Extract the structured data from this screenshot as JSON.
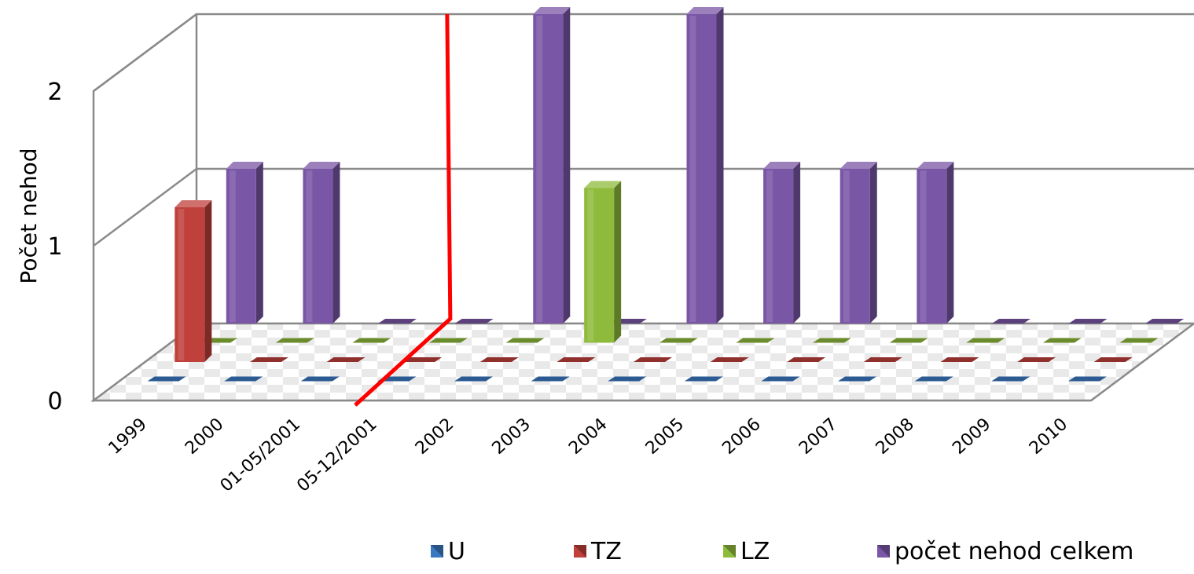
{
  "chart_data": {
    "type": "bar",
    "title": "",
    "xlabel": "",
    "ylabel": "Počet nehod",
    "ylim": [
      0,
      2
    ],
    "yticks": [
      "0",
      "1",
      "2"
    ],
    "grid": true,
    "legend_position": "bottom",
    "categories": [
      "1999",
      "2000",
      "01-05/2001",
      "05-12/2001",
      "2002",
      "2003",
      "2004",
      "2005",
      "2006",
      "2007",
      "2008",
      "2009",
      "2010"
    ],
    "series": [
      {
        "name": "U",
        "color": "#3a78c2",
        "values": [
          0,
          0,
          0,
          0,
          0,
          0,
          0,
          0,
          0,
          0,
          0,
          0,
          0
        ]
      },
      {
        "name": "TZ",
        "color": "#c0403c",
        "values": [
          1,
          0,
          0,
          0,
          0,
          0,
          0,
          0,
          0,
          0,
          0,
          0,
          0
        ]
      },
      {
        "name": "LZ",
        "color": "#8fbb3c",
        "values": [
          0,
          0,
          0,
          0,
          0,
          1,
          0,
          0,
          0,
          0,
          0,
          0,
          0
        ]
      },
      {
        "name": "počet nehod celkem",
        "color": "#7a56a6",
        "values": [
          1,
          1,
          0,
          0,
          2,
          0,
          2,
          1,
          1,
          1,
          0,
          0,
          0
        ]
      }
    ],
    "annotation": {
      "type": "vertical-line",
      "color": "#ff0000",
      "between": [
        "01-05/2001",
        "05-12/2001"
      ]
    }
  }
}
